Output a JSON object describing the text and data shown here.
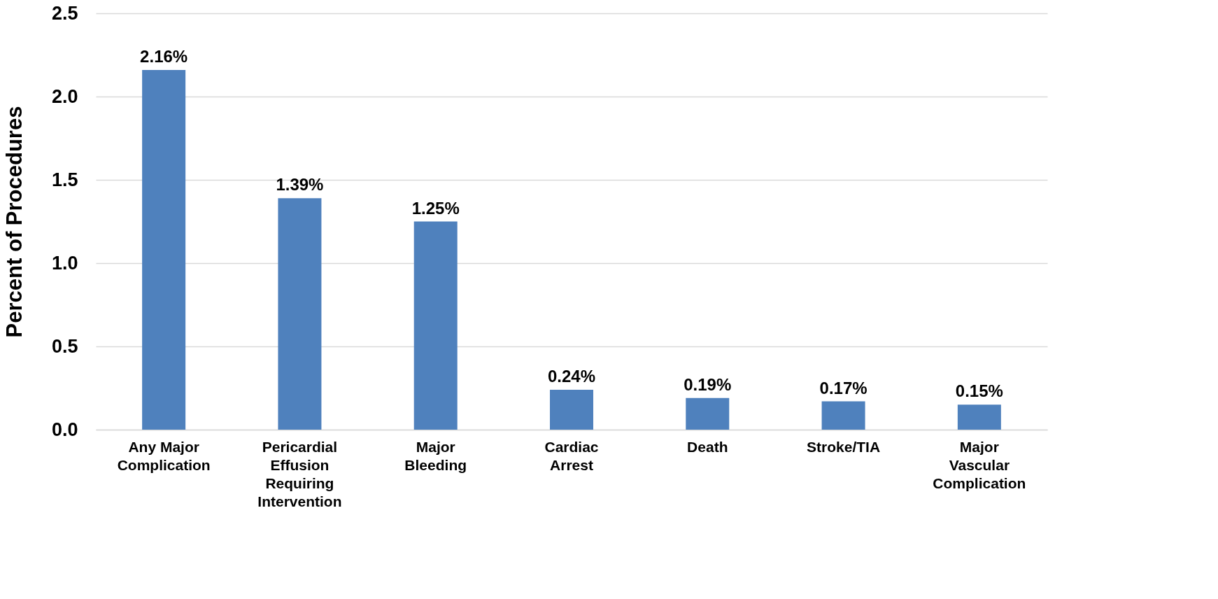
{
  "chart_data": {
    "type": "bar",
    "ylabel": "Percent of Procedures",
    "categories": [
      "Any Major Complication",
      "Pericardial Effusion Requiring Intervention",
      "Major Bleeding",
      "Cardiac Arrest",
      "Death",
      "Stroke/TIA",
      "Major Vascular Complication"
    ],
    "values": [
      2.16,
      1.39,
      1.25,
      0.24,
      0.19,
      0.17,
      0.15
    ],
    "value_labels": [
      "2.16%",
      "1.39%",
      "1.25%",
      "0.24%",
      "0.19%",
      "0.17%",
      "0.15%"
    ],
    "color": "#4f81bd",
    "ylim": [
      0,
      2.5
    ],
    "yticks": [
      {
        "value": 0,
        "label": "0.0"
      },
      {
        "value": 0.5,
        "label": "0.5"
      },
      {
        "value": 1,
        "label": "1.0"
      },
      {
        "value": 1.5,
        "label": "1.5"
      },
      {
        "value": 2,
        "label": "2.0"
      },
      {
        "value": 2.5,
        "label": "2.5"
      }
    ],
    "grid": "y"
  }
}
